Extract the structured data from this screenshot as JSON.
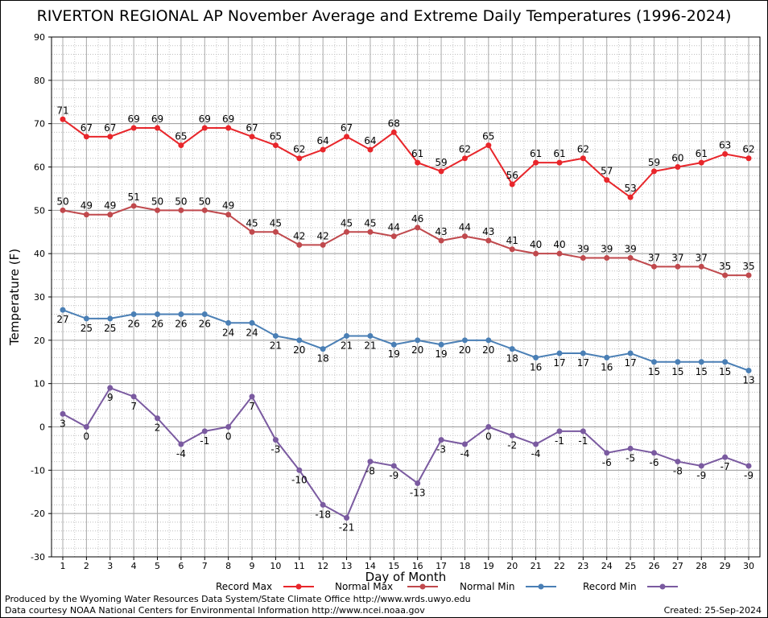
{
  "chart_data": {
    "type": "line",
    "title": "RIVERTON REGIONAL AP November Average and Extreme Daily Temperatures (1996-2024)",
    "xlabel": "Day of Month",
    "ylabel": "Temperature (F)",
    "xlim": [
      1,
      30
    ],
    "ylim": [
      -30,
      90
    ],
    "yticks": [
      -30,
      -20,
      -10,
      0,
      10,
      20,
      30,
      40,
      50,
      60,
      70,
      80,
      90
    ],
    "x": [
      1,
      2,
      3,
      4,
      5,
      6,
      7,
      8,
      9,
      10,
      11,
      12,
      13,
      14,
      15,
      16,
      17,
      18,
      19,
      20,
      21,
      22,
      23,
      24,
      25,
      26,
      27,
      28,
      29,
      30
    ],
    "grid": true,
    "legend_position": "bottom",
    "series": [
      {
        "name": "Record Max",
        "color": "#e8262b",
        "label_pos": "above",
        "values": [
          71,
          67,
          67,
          69,
          69,
          65,
          69,
          69,
          67,
          65,
          62,
          64,
          67,
          64,
          68,
          61,
          59,
          62,
          65,
          56,
          61,
          61,
          62,
          57,
          53,
          59,
          60,
          61,
          63,
          62
        ]
      },
      {
        "name": "Normal Max",
        "color": "#c0494d",
        "label_pos": "above",
        "values": [
          50,
          49,
          49,
          51,
          50,
          50,
          50,
          49,
          45,
          45,
          42,
          42,
          45,
          45,
          44,
          46,
          43,
          44,
          43,
          41,
          40,
          40,
          39,
          39,
          39,
          37,
          37,
          37,
          35,
          35
        ]
      },
      {
        "name": "Normal Min",
        "color": "#4a7fb5",
        "label_pos": "below",
        "values": [
          27,
          25,
          25,
          26,
          26,
          26,
          26,
          24,
          24,
          21,
          20,
          18,
          21,
          21,
          19,
          20,
          19,
          20,
          20,
          18,
          16,
          17,
          17,
          16,
          17,
          15,
          15,
          15,
          15,
          13
        ]
      },
      {
        "name": "Record Min",
        "color": "#7a5aa0",
        "label_pos": "below",
        "values": [
          3,
          0,
          9,
          7,
          2,
          -4,
          -1,
          0,
          7,
          -3,
          -10,
          -18,
          -21,
          -8,
          -9,
          -13,
          -3,
          -4,
          0,
          -2,
          -4,
          -1,
          -1,
          -6,
          -5,
          -6,
          -8,
          -9,
          -7,
          -9
        ]
      }
    ]
  },
  "footer": {
    "line1": "Produced by the Wyoming Water Resources Data System/State Climate Office http://www.wrds.uwyo.edu",
    "line2": "Data courtesy NOAA National Centers for Environmental Information http://www.ncei.noaa.gov",
    "created": "Created:  25-Sep-2024"
  }
}
